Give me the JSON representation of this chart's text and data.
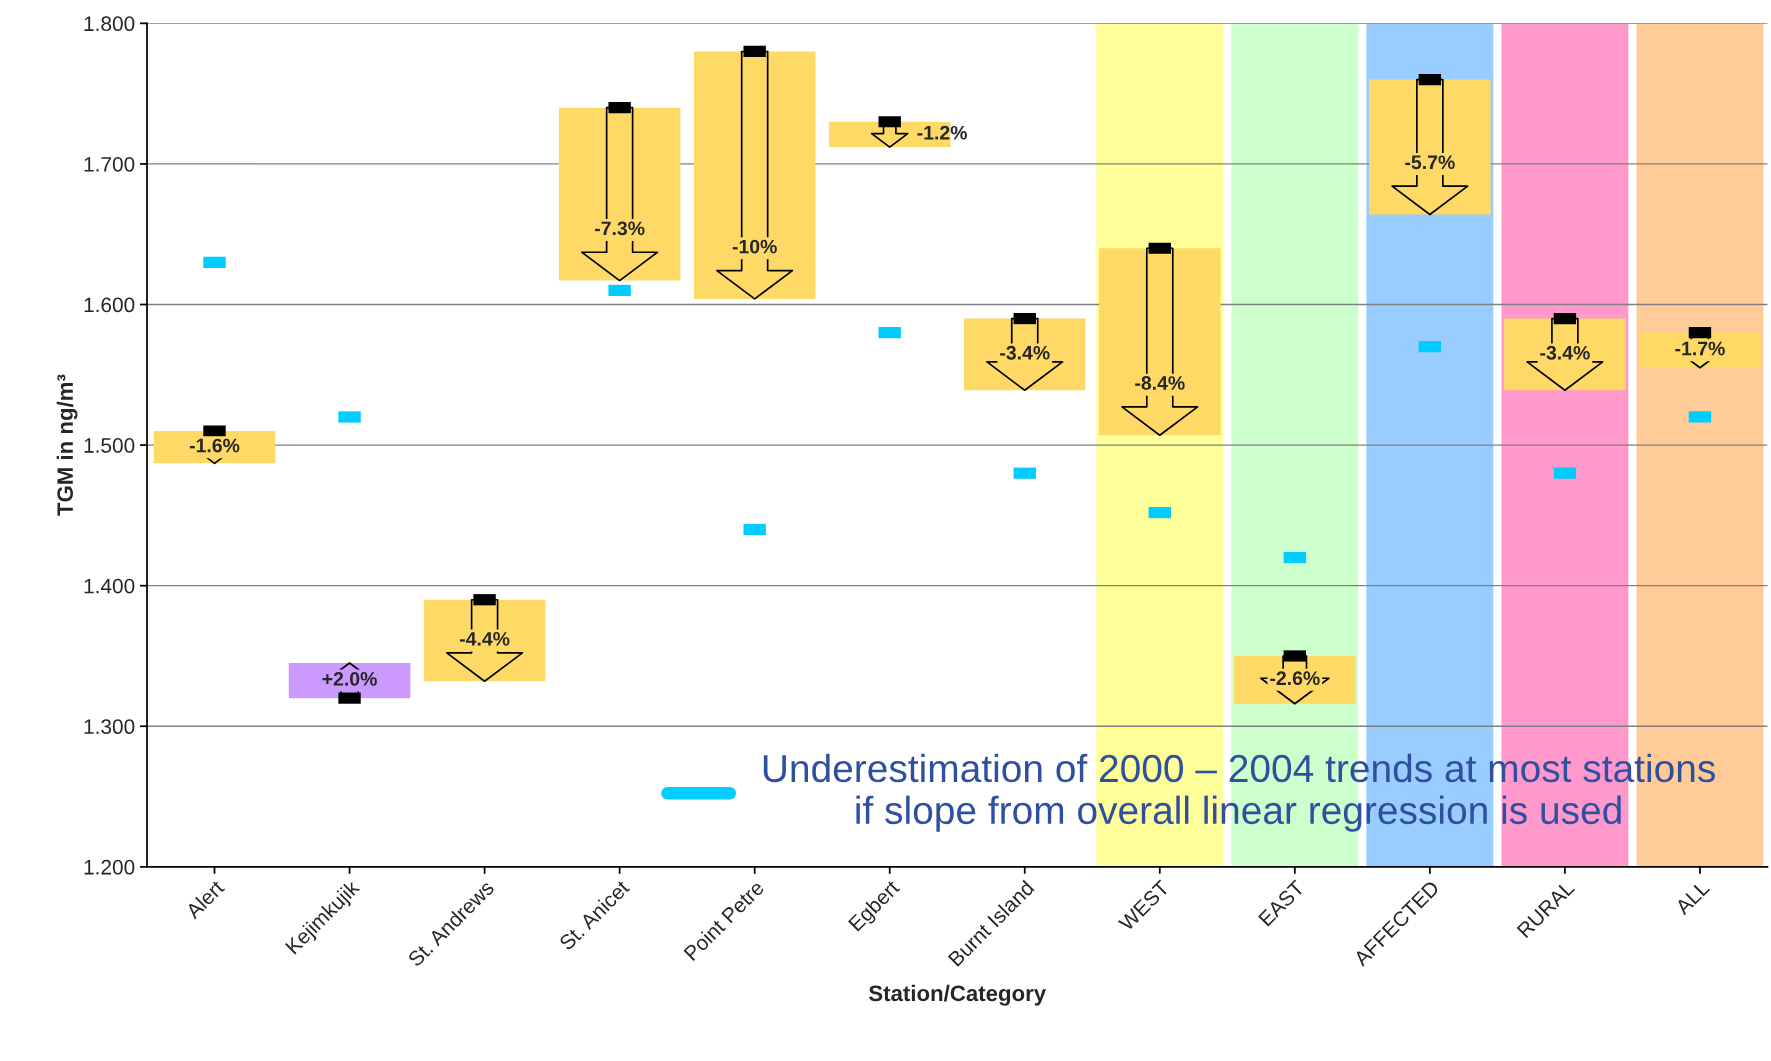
{
  "chart_data": {
    "type": "bar",
    "xlabel": "Station/Category",
    "ylabel": "TGM in ng/m³",
    "categories": [
      "Alert",
      "Kejimkujik",
      "St. Andrews",
      "St. Anicet",
      "Point Petre",
      "Egbert",
      "Burnt Island",
      "WEST",
      "EAST",
      "AFFECTED",
      "RURAL",
      "ALL"
    ],
    "series": [
      {
        "base": [
          1.51,
          1.32,
          1.39,
          1.74,
          1.78,
          1.73,
          1.59,
          1.64,
          1.35,
          1.76,
          1.59,
          1.58
        ],
        "values": [
          -0.023,
          0.025,
          -0.058,
          -0.123,
          -0.176,
          -0.018,
          -0.051,
          -0.133,
          -0.034,
          -0.096,
          -0.051,
          -0.025
        ],
        "colors": [
          "#ffd966",
          "#cc99ff",
          "#ffd966",
          "#ffd966",
          "#ffd966",
          "#ffd966",
          "#ffd966",
          "#ffd966",
          "#ffd966",
          "#ffd966",
          "#ffd966",
          "#ffd966"
        ]
      },
      {
        "type": "scatter",
        "color": "#000000",
        "values": [
          1.51,
          1.32,
          1.39,
          1.74,
          1.78,
          1.73,
          1.59,
          1.64,
          1.35,
          1.76,
          1.59,
          1.58
        ]
      },
      {
        "type": "scatter",
        "color": "#00ccff",
        "name": "Underestimation of 2000 – 2004 trends at most stations if slope from overall linear regression is used",
        "values": [
          1.63,
          1.52,
          null,
          1.61,
          1.44,
          1.58,
          1.48,
          1.452,
          1.42,
          1.57,
          1.48,
          1.52
        ]
      }
    ],
    "annotations": [
      {
        "text": "-1.6%",
        "x": "Alert",
        "y": 1.487
      },
      {
        "text": "+2.0%",
        "x": "Kejimkujik",
        "y": 1.345
      },
      {
        "text": "-4.4%",
        "x": "St. Andrews",
        "y": 1.332
      },
      {
        "text": "-7.3%",
        "x": "St. Anicet",
        "y": 1.617
      },
      {
        "text": "-10%",
        "x": "Point Petre",
        "y": 1.604
      },
      {
        "text": "-1.2%",
        "x": "Egbert",
        "y": 1.712
      },
      {
        "text": "-3.4%",
        "x": "Burnt Island",
        "y": 1.539
      },
      {
        "text": "-8.4%",
        "x": "WEST",
        "y": 1.507
      },
      {
        "text": "-2.6%",
        "x": "EAST",
        "y": 1.316
      },
      {
        "text": "-5.7%",
        "x": "AFFECTED",
        "y": 1.664
      },
      {
        "text": "-3.4%",
        "x": "RURAL",
        "y": 1.539
      },
      {
        "text": "-1.7%",
        "x": "ALL",
        "y": 1.555
      }
    ],
    "bands": [
      {
        "axis": "x",
        "from": "WEST",
        "to": "WEST",
        "color": "#ffff99"
      },
      {
        "axis": "x",
        "from": "EAST",
        "to": "EAST",
        "color": "#ccffcc"
      },
      {
        "axis": "x",
        "from": "AFFECTED",
        "to": "AFFECTED",
        "color": "#99ccff"
      },
      {
        "axis": "x",
        "from": "RURAL",
        "to": "RURAL",
        "color": "#ff99cc"
      },
      {
        "axis": "x",
        "from": "ALL",
        "to": "ALL",
        "color": "#ffcc99"
      }
    ],
    "ylim": [
      1.2,
      1.8
    ],
    "yticks": [
      {
        "value": 1.2,
        "label": "1.200"
      },
      {
        "value": 1.3,
        "label": "1.300"
      },
      {
        "value": 1.4,
        "label": "1.400"
      },
      {
        "value": 1.5,
        "label": "1.500"
      },
      {
        "value": 1.6,
        "label": "1.600"
      },
      {
        "value": 1.7,
        "label": "1.700"
      },
      {
        "value": 1.8,
        "label": "1.800"
      }
    ],
    "grid": "y",
    "legend": "bottom right"
  }
}
